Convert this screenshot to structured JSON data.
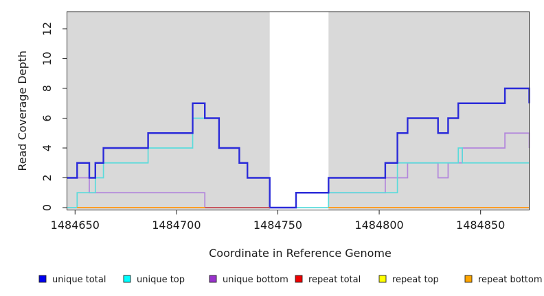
{
  "chart_data": {
    "type": "line",
    "subtype": "step",
    "title": "",
    "xlabel": "Coordinate in Reference Genome",
    "ylabel": "Read Coverage Depth",
    "xlim": [
      1484646,
      1484874
    ],
    "ylim": [
      0,
      13
    ],
    "xticks": [
      1484650,
      1484700,
      1484750,
      1484800,
      1484850
    ],
    "yticks": [
      0,
      2,
      4,
      6,
      8,
      10,
      12
    ],
    "grid": false,
    "plot_bg_color": "#d9d9d9",
    "masked_region": {
      "from": 1484746,
      "to": 1484775,
      "color": "#ffffff"
    },
    "series": [
      {
        "name": "unique bottom",
        "line_color": "#B286DC",
        "line_width": 1.7,
        "segments": [
          {
            "steps": [
              [
                1484646,
                2
              ],
              [
                1484657,
                1
              ],
              [
                1484714,
                0
              ],
              [
                1484759,
                1
              ],
              [
                1484803,
                2
              ],
              [
                1484814,
                3
              ],
              [
                1484829,
                2
              ],
              [
                1484834,
                3
              ],
              [
                1484841,
                4
              ],
              [
                1484862,
                5
              ],
              [
                1484874,
                4
              ]
            ],
            "end": 1484874
          }
        ]
      },
      {
        "name": "unique top",
        "line_color": "#5BDBDB",
        "line_width": 1.7,
        "segments": [
          {
            "steps": [
              [
                1484646,
                0
              ],
              [
                1484651,
                1
              ],
              [
                1484660,
                2
              ],
              [
                1484664,
                3
              ],
              [
                1484686,
                4
              ],
              [
                1484708,
                6
              ],
              [
                1484721,
                4
              ],
              [
                1484731,
                3
              ],
              [
                1484735,
                2
              ],
              [
                1484746,
                0
              ],
              [
                1484775,
                1
              ],
              [
                1484809,
                3
              ],
              [
                1484839,
                4
              ],
              [
                1484841,
                3
              ]
            ],
            "end": 1484874
          }
        ]
      },
      {
        "name": "unique total",
        "line_color": "#2B2BD9",
        "line_width": 2.4,
        "segments": [
          {
            "steps": [
              [
                1484646,
                2
              ],
              [
                1484651,
                3
              ],
              [
                1484657,
                2
              ],
              [
                1484660,
                3
              ],
              [
                1484664,
                4
              ],
              [
                1484686,
                5
              ],
              [
                1484708,
                7
              ],
              [
                1484714,
                6
              ],
              [
                1484721,
                4
              ],
              [
                1484731,
                3
              ],
              [
                1484735,
                2
              ],
              [
                1484746,
                0
              ],
              [
                1484759,
                1
              ],
              [
                1484775,
                2
              ],
              [
                1484803,
                3
              ],
              [
                1484809,
                5
              ],
              [
                1484814,
                6
              ],
              [
                1484829,
                5
              ],
              [
                1484834,
                6
              ],
              [
                1484839,
                7
              ],
              [
                1484862,
                8
              ],
              [
                1484874,
                7
              ]
            ],
            "end": 1484874
          }
        ]
      },
      {
        "name": "repeat total",
        "line_color": "#C94E4E",
        "line_width": 1.7,
        "segments": [
          {
            "steps": [
              [
                1484651,
                0
              ]
            ],
            "end": 1484746
          },
          {
            "steps": [
              [
                1484775,
                0
              ]
            ],
            "end": 1484874
          }
        ]
      },
      {
        "name": "repeat top",
        "line_color": "#E8E800",
        "line_width": 1.7,
        "segments": [
          {
            "steps": [
              [
                1484651,
                0
              ]
            ],
            "end": 1484714
          },
          {
            "steps": [
              [
                1484775,
                0
              ]
            ],
            "end": 1484874
          }
        ]
      },
      {
        "name": "repeat bottom",
        "line_color": "#FF9D26",
        "line_width": 2,
        "segments": [
          {
            "steps": [
              [
                1484651,
                0
              ]
            ],
            "end": 1484714
          },
          {
            "steps": [
              [
                1484775,
                0
              ]
            ],
            "end": 1484874
          }
        ]
      }
    ],
    "legend_position": "bottom",
    "legend": [
      {
        "label": "unique total",
        "swatch_color": "#0000EE"
      },
      {
        "label": "unique top",
        "swatch_color": "#00FFFF"
      },
      {
        "label": "unique bottom",
        "swatch_color": "#9932CC"
      },
      {
        "label": "repeat total",
        "swatch_color": "#EE0000"
      },
      {
        "label": "repeat top",
        "swatch_color": "#FFFF00"
      },
      {
        "label": "repeat bottom",
        "swatch_color": "#FFA500"
      }
    ]
  }
}
